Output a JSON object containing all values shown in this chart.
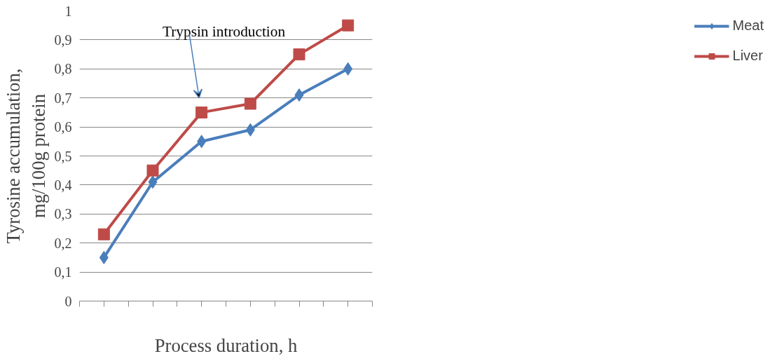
{
  "chart_data": {
    "type": "line",
    "xlabel": "Process duration, h",
    "ylabel": "Tyrosine accumulation,\nmg/100g protein",
    "categories": [
      null,
      null,
      null,
      null,
      null,
      null
    ],
    "series": [
      {
        "name": "Meat",
        "color": "#4a7ebb",
        "marker": "diamond",
        "values": [
          0.15,
          0.41,
          0.55,
          0.59,
          0.71,
          0.8
        ]
      },
      {
        "name": "Liver",
        "color": "#be4b48",
        "marker": "square",
        "values": [
          0.23,
          0.45,
          0.65,
          0.68,
          0.85,
          0.95
        ]
      }
    ],
    "ylim": [
      0,
      1
    ],
    "yticks": [
      0,
      {
        "value": 0.1,
        "label": "0,1"
      },
      {
        "value": 0.2,
        "label": "0,2"
      },
      {
        "value": 0.3,
        "label": "0,3"
      },
      {
        "value": 0.4,
        "label": "0,4"
      },
      {
        "value": 0.5,
        "label": "0,5"
      },
      {
        "value": 0.6,
        "label": "0,6"
      },
      {
        "value": 0.7,
        "label": "0,7"
      },
      {
        "value": 0.8,
        "label": "0,8"
      },
      {
        "value": 0.9,
        "label": "0,9"
      },
      1
    ],
    "annotations": [
      "Trypsin introduction"
    ],
    "grid": "y",
    "legend": "right"
  }
}
